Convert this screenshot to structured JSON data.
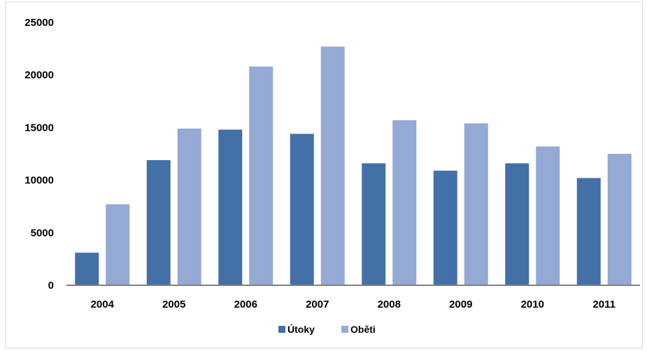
{
  "chart_data": {
    "type": "bar",
    "title": "",
    "xlabel": "",
    "ylabel": "",
    "categories": [
      "2004",
      "2005",
      "2006",
      "2007",
      "2008",
      "2009",
      "2010",
      "2011"
    ],
    "series": [
      {
        "name": "Útoky",
        "color": "#4470a8",
        "values": [
          3100,
          11900,
          14800,
          14400,
          11600,
          10900,
          11600,
          10200
        ]
      },
      {
        "name": "Oběti",
        "color": "#94a9d4",
        "values": [
          7700,
          14900,
          20800,
          22700,
          15700,
          15400,
          13200,
          12500
        ]
      }
    ],
    "ylim": [
      0,
      25000
    ],
    "yticks": [
      "0",
      "5000",
      "10000",
      "15000",
      "20000",
      "25000"
    ],
    "grid": false,
    "legend_position": "bottom"
  }
}
